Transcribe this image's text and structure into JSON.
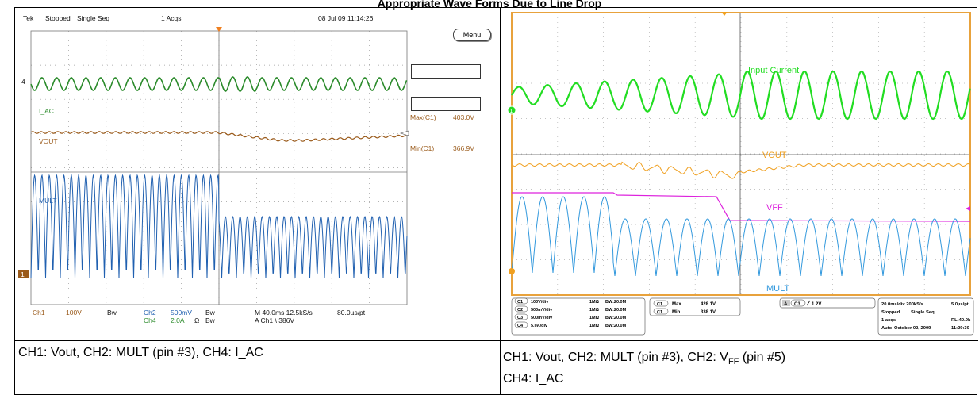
{
  "title": "Appropriate Wave Forms Due to Line Drop",
  "left": {
    "header": {
      "brand": "Tek",
      "state": "Stopped",
      "mode": "Single Seq",
      "acqs": "1 Acqs",
      "datetime": "08 Jul 09 11:14:26"
    },
    "menu_label": "Menu",
    "ch_markers": {
      "ch4": "4",
      "ch1": "1"
    },
    "labels": {
      "iac": "I_AC",
      "vout": "VOUT",
      "mult": "MULT"
    },
    "measure": {
      "max_label": "Max(C1)",
      "max_value": "403.0V",
      "min_label": "Min(C1)",
      "min_value": "366.9V"
    },
    "footer": {
      "ch1": "Ch1",
      "ch1_scale": "100V",
      "bw": "Bw",
      "ch2": "Ch2",
      "ch2_scale": "500mV",
      "ch4": "Ch4",
      "ch4_scale": "2.0A",
      "ohm": "Ω",
      "timebase": "M 40.0ms 12.5kS/s",
      "pt": "80.0µs/pt",
      "trigger": "A  Ch1  \\  386V"
    },
    "caption": "CH1: Vout, CH2: MULT (pin #3), CH4: I_AC"
  },
  "right": {
    "labels": {
      "input_current": "Input Current",
      "vout": "VOUT",
      "vff": "VFF",
      "mult": "MULT"
    },
    "markers": {
      "ch1": "1"
    },
    "channels": [
      {
        "id": "C1",
        "scale": "100V/div",
        "imp": "1MΩ",
        "bw": "BW:20.0M"
      },
      {
        "id": "C2",
        "scale": "500mV/div",
        "imp": "1MΩ",
        "bw": "BW:20.0M"
      },
      {
        "id": "C3",
        "scale": "500mV/div",
        "imp": "1MΩ",
        "bw": "BW:20.0M"
      },
      {
        "id": "C4",
        "scale": "5.0A/div",
        "imp": "1MΩ",
        "bw": "BW:20.0M"
      }
    ],
    "measure": {
      "c1": "C1",
      "max_label": "Max",
      "max_value": "428.1V",
      "min_label": "Min",
      "min_value": "338.1V"
    },
    "trigger": {
      "a": "A",
      "ch": "C3",
      "level": "1.2V"
    },
    "acq": {
      "timebase": "20.0ms/div 200kS/s",
      "pt": "5.0µs/pt",
      "state": "Stopped",
      "mode": "Single Seq",
      "acqs": "1 acqs",
      "rl": "RL:40.0k",
      "auto": "Auto",
      "date": "October 02, 2009",
      "time": "11:29:30"
    },
    "caption_a": "CH1: Vout, CH2: MULT (pin #3), CH2: V",
    "caption_sub": "FF",
    "caption_b": " (pin #5)",
    "caption2": "CH4: I_AC"
  },
  "colors": {
    "green": "#2a8a2a",
    "brown": "#9a5a1a",
    "blue": "#2060b0",
    "bright_green": "#22dd22",
    "orange": "#f0a020",
    "magenta": "#dd22dd",
    "cyan": "#3399dd",
    "frame": "#e8a23c"
  }
}
